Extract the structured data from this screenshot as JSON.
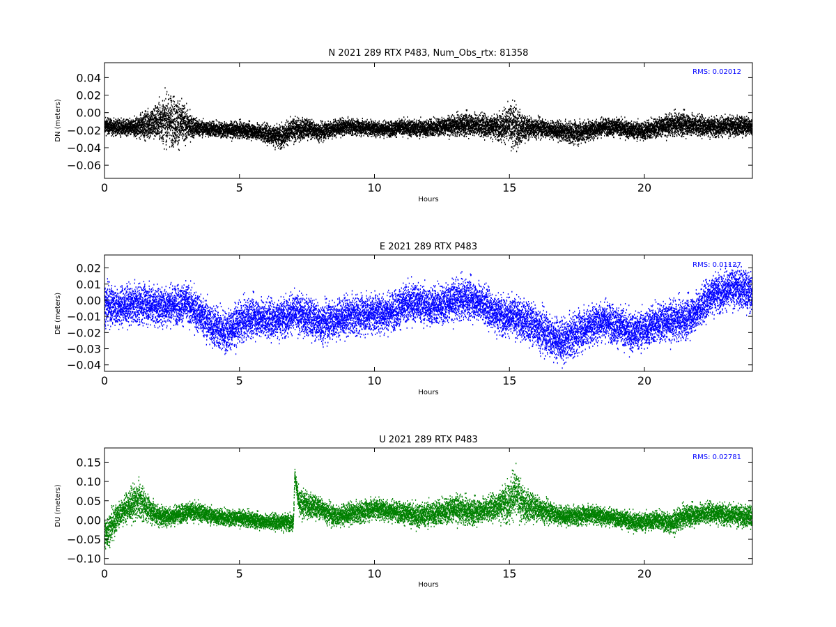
{
  "chart_data": [
    {
      "type": "scatter",
      "title": "N 2021 289 RTX  P483, Num_Obs_rtx: 81358",
      "xlabel": "Hours",
      "ylabel": "DN (meters)",
      "xlim": [
        0,
        24
      ],
      "ylim": [
        -0.075,
        0.057
      ],
      "xticks": [
        0,
        5,
        10,
        15,
        20
      ],
      "xtick_labels": [
        "0",
        "5",
        "10",
        "15",
        "20"
      ],
      "yticks": [
        -0.06,
        -0.04,
        -0.02,
        0.0,
        0.02,
        0.04
      ],
      "ytick_labels": [
        "−0.06",
        "−0.04",
        "−0.02",
        "0.00",
        "0.02",
        "0.04"
      ],
      "color": "#000000",
      "annotation": "RMS:  0.02012",
      "annotation_color": "#0000ff",
      "grid": false,
      "series": [
        {
          "x": [
            0.0,
            0.5,
            1.0,
            1.5,
            2.0,
            2.4,
            2.8,
            3.2,
            3.6,
            4.0,
            4.5,
            5.0,
            5.5,
            6.0,
            6.5,
            7.0,
            7.5,
            8.0,
            8.5,
            9.0,
            9.5,
            10.0,
            10.5,
            11.0,
            11.5,
            12.0,
            12.5,
            13.0,
            13.5,
            14.0,
            14.5,
            15.0,
            15.2,
            15.5,
            16.0,
            16.5,
            17.0,
            17.5,
            18.0,
            18.5,
            19.0,
            19.5,
            20.0,
            20.5,
            21.0,
            21.5,
            22.0,
            22.5,
            23.0,
            23.5,
            24.0
          ],
          "y": [
            -0.015,
            -0.017,
            -0.018,
            -0.014,
            -0.01,
            -0.008,
            -0.012,
            -0.016,
            -0.018,
            -0.019,
            -0.02,
            -0.02,
            -0.021,
            -0.024,
            -0.027,
            -0.02,
            -0.018,
            -0.022,
            -0.018,
            -0.016,
            -0.017,
            -0.018,
            -0.019,
            -0.017,
            -0.018,
            -0.018,
            -0.016,
            -0.015,
            -0.013,
            -0.015,
            -0.016,
            -0.014,
            -0.016,
            -0.018,
            -0.017,
            -0.019,
            -0.022,
            -0.023,
            -0.02,
            -0.016,
            -0.017,
            -0.02,
            -0.021,
            -0.017,
            -0.014,
            -0.013,
            -0.015,
            -0.016,
            -0.016,
            -0.015,
            -0.016
          ],
          "spread": [
            0.008,
            0.008,
            0.009,
            0.014,
            0.02,
            0.027,
            0.024,
            0.012,
            0.008,
            0.008,
            0.008,
            0.008,
            0.008,
            0.01,
            0.012,
            0.012,
            0.01,
            0.009,
            0.009,
            0.008,
            0.008,
            0.008,
            0.008,
            0.008,
            0.009,
            0.009,
            0.009,
            0.01,
            0.012,
            0.012,
            0.012,
            0.02,
            0.024,
            0.013,
            0.01,
            0.009,
            0.01,
            0.012,
            0.01,
            0.009,
            0.009,
            0.009,
            0.01,
            0.01,
            0.011,
            0.012,
            0.011,
            0.01,
            0.01,
            0.01,
            0.009
          ]
        }
      ]
    },
    {
      "type": "scatter",
      "title": "E 2021 289 RTX  P483",
      "xlabel": "Hours",
      "ylabel": "DE (meters)",
      "xlim": [
        0,
        24
      ],
      "ylim": [
        -0.044,
        0.028
      ],
      "xticks": [
        0,
        5,
        10,
        15,
        20
      ],
      "xtick_labels": [
        "0",
        "5",
        "10",
        "15",
        "20"
      ],
      "yticks": [
        -0.04,
        -0.03,
        -0.02,
        -0.01,
        0.0,
        0.01,
        0.02
      ],
      "ytick_labels": [
        "−0.04",
        "−0.03",
        "−0.02",
        "−0.01",
        "0.00",
        "0.01",
        "0.02"
      ],
      "color": "#0000ff",
      "annotation": "RMS:  0.01127",
      "annotation_color": "#0000ff",
      "grid": false,
      "series": [
        {
          "x": [
            0.0,
            0.5,
            1.0,
            1.5,
            2.0,
            2.5,
            3.0,
            3.5,
            4.0,
            4.5,
            5.0,
            5.5,
            6.0,
            6.5,
            7.0,
            7.5,
            8.0,
            8.5,
            9.0,
            9.5,
            10.0,
            10.5,
            11.0,
            11.5,
            12.0,
            12.5,
            13.0,
            13.5,
            14.0,
            14.5,
            15.0,
            15.5,
            16.0,
            16.5,
            17.0,
            17.5,
            18.0,
            18.5,
            19.0,
            19.5,
            20.0,
            20.5,
            21.0,
            21.5,
            22.0,
            22.5,
            23.0,
            23.5,
            24.0
          ],
          "y": [
            -0.002,
            -0.004,
            -0.003,
            -0.002,
            -0.004,
            -0.003,
            -0.002,
            -0.008,
            -0.016,
            -0.02,
            -0.014,
            -0.01,
            -0.012,
            -0.011,
            -0.008,
            -0.01,
            -0.014,
            -0.012,
            -0.01,
            -0.009,
            -0.008,
            -0.008,
            -0.004,
            -0.001,
            -0.004,
            -0.003,
            0.0,
            0.001,
            -0.002,
            -0.008,
            -0.01,
            -0.012,
            -0.016,
            -0.022,
            -0.026,
            -0.02,
            -0.016,
            -0.012,
            -0.016,
            -0.02,
            -0.018,
            -0.014,
            -0.013,
            -0.012,
            -0.006,
            0.004,
            0.006,
            0.008,
            0.004
          ],
          "spread": [
            0.011,
            0.011,
            0.011,
            0.011,
            0.011,
            0.011,
            0.011,
            0.011,
            0.012,
            0.012,
            0.011,
            0.011,
            0.011,
            0.011,
            0.011,
            0.011,
            0.011,
            0.011,
            0.011,
            0.011,
            0.011,
            0.011,
            0.011,
            0.011,
            0.011,
            0.011,
            0.011,
            0.011,
            0.011,
            0.011,
            0.011,
            0.011,
            0.012,
            0.012,
            0.012,
            0.012,
            0.011,
            0.011,
            0.011,
            0.011,
            0.011,
            0.011,
            0.011,
            0.011,
            0.011,
            0.011,
            0.011,
            0.011,
            0.011
          ]
        }
      ]
    },
    {
      "type": "scatter",
      "title": "U 2021 289 RTX  P483",
      "xlabel": "Hours",
      "ylabel": "DU (meters)",
      "xlim": [
        0,
        24
      ],
      "ylim": [
        -0.115,
        0.187
      ],
      "xticks": [
        0,
        5,
        10,
        15,
        20
      ],
      "xtick_labels": [
        "0",
        "5",
        "10",
        "15",
        "20"
      ],
      "yticks": [
        -0.1,
        -0.05,
        0.0,
        0.05,
        0.1,
        0.15
      ],
      "ytick_labels": [
        "−0.10",
        "−0.05",
        "0.00",
        "0.05",
        "0.10",
        "0.15"
      ],
      "color": "#008000",
      "annotation": "RMS:  0.02781",
      "annotation_color": "#0000ff",
      "grid": false,
      "series": [
        {
          "x": [
            0.0,
            0.3,
            0.6,
            1.0,
            1.3,
            1.6,
            2.0,
            2.5,
            3.0,
            3.5,
            4.0,
            4.5,
            5.0,
            5.5,
            6.0,
            6.5,
            7.0,
            7.05,
            7.2,
            7.5,
            8.0,
            8.5,
            9.0,
            9.5,
            10.0,
            10.5,
            11.0,
            11.5,
            12.0,
            12.5,
            13.0,
            13.5,
            14.0,
            14.5,
            15.0,
            15.2,
            15.5,
            16.0,
            16.5,
            17.0,
            17.5,
            18.0,
            18.5,
            19.0,
            19.5,
            20.0,
            20.5,
            21.0,
            21.5,
            22.0,
            22.5,
            23.0,
            23.5,
            24.0
          ],
          "y": [
            -0.04,
            -0.01,
            0.02,
            0.04,
            0.05,
            0.03,
            0.01,
            0.01,
            0.02,
            0.02,
            0.01,
            0.005,
            0.005,
            0.0,
            -0.005,
            -0.005,
            -0.005,
            0.12,
            0.04,
            0.04,
            0.03,
            0.01,
            0.015,
            0.02,
            0.03,
            0.025,
            0.02,
            0.01,
            0.015,
            0.02,
            0.03,
            0.02,
            0.025,
            0.035,
            0.05,
            0.07,
            0.04,
            0.03,
            0.02,
            0.01,
            0.01,
            0.015,
            0.01,
            0.005,
            -0.005,
            -0.005,
            0.0,
            -0.01,
            0.01,
            0.015,
            0.02,
            0.015,
            0.01,
            0.01
          ],
          "spread": [
            0.04,
            0.035,
            0.03,
            0.04,
            0.045,
            0.03,
            0.025,
            0.022,
            0.022,
            0.022,
            0.02,
            0.02,
            0.018,
            0.018,
            0.018,
            0.02,
            0.02,
            0.01,
            0.035,
            0.03,
            0.025,
            0.025,
            0.025,
            0.025,
            0.025,
            0.025,
            0.025,
            0.028,
            0.03,
            0.03,
            0.032,
            0.03,
            0.03,
            0.032,
            0.05,
            0.06,
            0.04,
            0.03,
            0.025,
            0.022,
            0.022,
            0.022,
            0.022,
            0.02,
            0.022,
            0.022,
            0.022,
            0.025,
            0.025,
            0.025,
            0.025,
            0.025,
            0.025,
            0.025
          ]
        }
      ]
    }
  ]
}
